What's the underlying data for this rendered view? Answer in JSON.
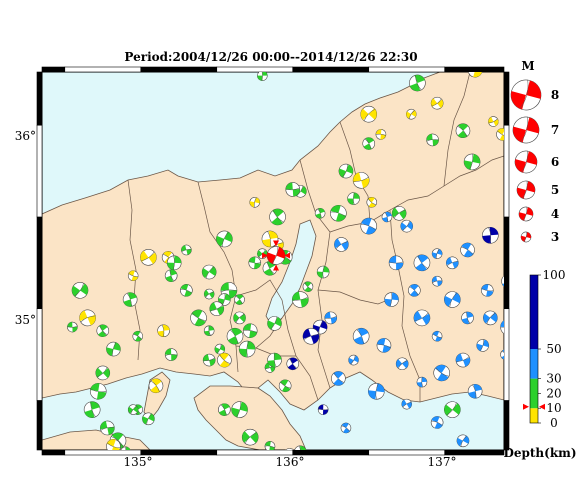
{
  "title": "Period:2004/12/26 00:00--2014/12/26 22:30",
  "colors": {
    "sea": "#dff8fa",
    "land": "#fbe4c6",
    "border": "#6b5748",
    "frame": "#000000",
    "highlight": "#ff0000",
    "depth_0_10": "#ffe400",
    "depth_10_30": "#2cd02c",
    "depth_30_50": "#1e90ff",
    "depth_50_100": "#0000a8"
  },
  "axes": {
    "lon_ticks": [
      "135°",
      "136°",
      "137°"
    ],
    "lat_ticks": [
      "35°",
      "36°"
    ]
  },
  "magnitude_legend": {
    "title": "M",
    "items": [
      "8",
      "7",
      "6",
      "5",
      "4",
      "3"
    ]
  },
  "depth_legend": {
    "title": "Depth(km)",
    "labels": [
      "100",
      "50",
      "30",
      "20",
      "10",
      "0"
    ],
    "marker_depth_km": 11
  },
  "highlight_event": {
    "lon": 135.89,
    "lat": 35.29,
    "depth_km": 11,
    "label": "◆"
  },
  "events": [
    [
      135.8,
      36.27,
      15
    ],
    [
      136.95,
      36.12,
      5
    ],
    [
      137.2,
      36.3,
      5
    ],
    [
      136.82,
      36.23,
      10
    ],
    [
      136.78,
      36.06,
      5
    ],
    [
      136.92,
      35.92,
      12
    ],
    [
      137.12,
      35.97,
      14
    ],
    [
      137.18,
      35.8,
      12
    ],
    [
      137.32,
      36.02,
      6
    ],
    [
      137.38,
      35.95,
      7
    ],
    [
      137.45,
      35.98,
      6
    ],
    [
      136.5,
      36.06,
      8
    ],
    [
      136.58,
      35.95,
      5
    ],
    [
      136.5,
      35.9,
      18
    ],
    [
      136.35,
      35.75,
      14
    ],
    [
      136.45,
      35.7,
      8
    ],
    [
      136.52,
      35.58,
      9
    ],
    [
      136.4,
      35.6,
      15
    ],
    [
      136.7,
      35.52,
      16
    ],
    [
      136.3,
      35.52,
      12
    ],
    [
      136.18,
      35.52,
      15
    ],
    [
      136.05,
      35.64,
      20
    ],
    [
      136.0,
      35.65,
      16
    ],
    [
      135.9,
      35.5,
      18
    ],
    [
      135.75,
      35.58,
      5
    ],
    [
      135.9,
      35.35,
      8
    ],
    [
      135.95,
      35.28,
      16
    ],
    [
      135.85,
      35.38,
      7
    ],
    [
      135.8,
      35.3,
      18
    ],
    [
      135.75,
      35.25,
      12
    ],
    [
      135.85,
      35.22,
      12
    ],
    [
      135.55,
      35.38,
      14
    ],
    [
      135.3,
      35.32,
      13
    ],
    [
      135.18,
      35.28,
      7
    ],
    [
      135.22,
      35.25,
      12
    ],
    [
      135.05,
      35.28,
      8
    ],
    [
      134.95,
      35.18,
      6
    ],
    [
      135.2,
      35.18,
      13
    ],
    [
      135.45,
      35.2,
      15
    ],
    [
      135.58,
      35.1,
      13
    ],
    [
      135.65,
      35.05,
      11
    ],
    [
      135.55,
      35.05,
      15
    ],
    [
      135.5,
      35.0,
      14
    ],
    [
      135.38,
      34.95,
      14
    ],
    [
      135.45,
      34.88,
      11
    ],
    [
      135.65,
      34.95,
      13
    ],
    [
      135.72,
      34.88,
      18
    ],
    [
      135.62,
      34.85,
      12
    ],
    [
      135.52,
      34.78,
      16
    ],
    [
      135.45,
      34.72,
      10
    ],
    [
      135.55,
      34.72,
      8
    ],
    [
      135.7,
      34.78,
      12
    ],
    [
      135.45,
      35.08,
      15
    ],
    [
      135.3,
      35.1,
      12
    ],
    [
      134.93,
      35.05,
      19
    ],
    [
      134.6,
      35.1,
      15
    ],
    [
      134.55,
      34.9,
      13
    ],
    [
      134.75,
      34.88,
      16
    ],
    [
      134.82,
      34.78,
      18
    ],
    [
      134.65,
      34.95,
      7
    ],
    [
      134.98,
      34.85,
      16
    ],
    [
      135.15,
      34.88,
      9
    ],
    [
      134.75,
      34.65,
      15
    ],
    [
      134.72,
      34.55,
      12
    ],
    [
      134.98,
      34.45,
      14
    ],
    [
      135.05,
      34.4,
      18
    ],
    [
      134.78,
      34.35,
      16
    ],
    [
      134.85,
      34.28,
      15
    ],
    [
      134.9,
      34.22,
      18
    ],
    [
      134.92,
      34.18,
      20
    ],
    [
      134.82,
      34.25,
      8
    ],
    [
      134.68,
      34.45,
      13
    ],
    [
      134.95,
      34.45,
      12
    ],
    [
      135.2,
      34.75,
      14
    ],
    [
      135.1,
      34.58,
      8
    ],
    [
      135.65,
      34.45,
      15
    ],
    [
      135.85,
      34.68,
      18
    ],
    [
      135.95,
      34.58,
      16
    ],
    [
      135.88,
      34.72,
      13
    ],
    [
      135.72,
      34.3,
      18
    ],
    [
      135.85,
      34.25,
      13
    ],
    [
      135.55,
      34.45,
      14
    ],
    [
      135.88,
      34.92,
      18
    ],
    [
      136.05,
      35.05,
      11
    ],
    [
      136.1,
      35.12,
      14
    ],
    [
      136.2,
      35.2,
      16
    ],
    [
      136.32,
      35.35,
      32
    ],
    [
      136.5,
      35.45,
      33
    ],
    [
      136.62,
      35.5,
      35
    ],
    [
      136.75,
      35.45,
      38
    ],
    [
      136.68,
      35.25,
      36
    ],
    [
      136.85,
      35.25,
      32
    ],
    [
      136.95,
      35.3,
      35
    ],
    [
      137.05,
      35.25,
      42
    ],
    [
      137.15,
      35.32,
      48
    ],
    [
      137.3,
      35.4,
      55
    ],
    [
      137.45,
      35.52,
      60
    ],
    [
      137.28,
      35.1,
      40
    ],
    [
      137.42,
      35.15,
      42
    ],
    [
      137.05,
      35.05,
      44
    ],
    [
      136.95,
      35.15,
      32
    ],
    [
      136.8,
      35.1,
      38
    ],
    [
      136.65,
      35.05,
      35
    ],
    [
      136.85,
      34.95,
      45
    ],
    [
      136.95,
      34.85,
      38
    ],
    [
      137.15,
      34.95,
      42
    ],
    [
      137.3,
      34.95,
      45
    ],
    [
      137.42,
      34.9,
      40
    ],
    [
      137.4,
      34.75,
      35
    ],
    [
      137.25,
      34.8,
      38
    ],
    [
      137.12,
      34.72,
      42
    ],
    [
      136.98,
      34.65,
      35
    ],
    [
      136.85,
      34.6,
      30
    ],
    [
      136.72,
      34.7,
      38
    ],
    [
      136.6,
      34.8,
      35
    ],
    [
      136.45,
      34.85,
      32
    ],
    [
      136.4,
      34.72,
      38
    ],
    [
      136.25,
      34.95,
      40
    ],
    [
      136.3,
      34.62,
      38
    ],
    [
      136.55,
      34.55,
      36
    ],
    [
      136.75,
      34.48,
      40
    ],
    [
      136.95,
      34.38,
      42
    ],
    [
      137.2,
      34.55,
      38
    ],
    [
      137.05,
      34.45,
      12
    ],
    [
      136.2,
      34.45,
      65
    ],
    [
      136.0,
      34.7,
      70
    ],
    [
      136.18,
      34.9,
      62
    ],
    [
      136.12,
      34.85,
      58
    ],
    [
      136.35,
      34.35,
      38
    ],
    [
      136.05,
      34.22,
      12
    ],
    [
      135.98,
      34.2,
      75
    ],
    [
      136.02,
      34.15,
      8
    ],
    [
      135.6,
      34.2,
      62
    ],
    [
      137.12,
      34.28,
      32
    ]
  ],
  "mag_scale": [
    8,
    7,
    6,
    5,
    4,
    3
  ]
}
